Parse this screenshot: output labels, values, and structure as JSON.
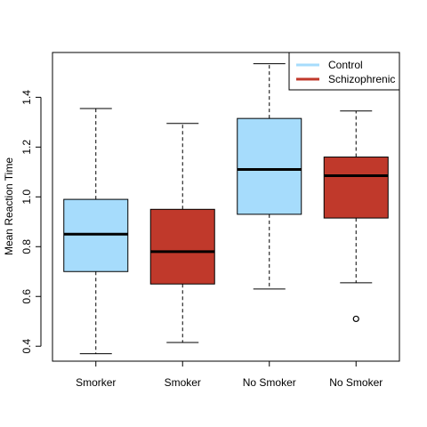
{
  "chart_data": {
    "type": "boxplot",
    "title": "",
    "xlabel": "",
    "ylabel": "Mean Reaction Time",
    "ylim": [
      0.34,
      1.58
    ],
    "yticks": [
      0.4,
      0.6,
      0.8,
      1.0,
      1.2,
      1.4
    ],
    "ytick_labels": [
      "0.4",
      "0.6",
      "0.8",
      "1.0",
      "1.2",
      "1.4"
    ],
    "categories": [
      "Smorker",
      "Smoker",
      "No Smoker",
      "No Smoker"
    ],
    "grid": false,
    "legend_position": "top-right",
    "series": [
      {
        "name": "Control",
        "color": "#a6dcfc"
      },
      {
        "name": "Schizophrenic",
        "color": "#c0392b"
      }
    ],
    "boxes": [
      {
        "category": "Smorker",
        "series": "Control",
        "whisker_low": 0.37,
        "q1": 0.7,
        "median": 0.85,
        "q3": 0.99,
        "whisker_high": 1.355,
        "outliers": []
      },
      {
        "category": "Smoker",
        "series": "Schizophrenic",
        "whisker_low": 0.415,
        "q1": 0.65,
        "median": 0.78,
        "q3": 0.95,
        "whisker_high": 1.295,
        "outliers": []
      },
      {
        "category": "No Smoker",
        "series": "Control",
        "whisker_low": 0.63,
        "q1": 0.93,
        "median": 1.11,
        "q3": 1.315,
        "whisker_high": 1.535,
        "outliers": []
      },
      {
        "category": "No Smoker",
        "series": "Schizophrenic",
        "whisker_low": 0.655,
        "q1": 0.915,
        "median": 1.085,
        "q3": 1.16,
        "whisker_high": 1.345,
        "outliers": [
          0.51
        ]
      }
    ]
  }
}
